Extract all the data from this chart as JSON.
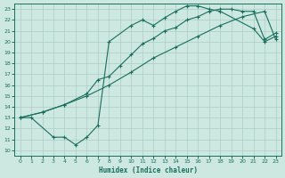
{
  "xlabel": "Humidex (Indice chaleur)",
  "background_color": "#cce8e0",
  "grid_color": "#aaccc4",
  "line_color": "#1a6e5e",
  "xlim": [
    -0.5,
    23.5
  ],
  "ylim": [
    9.5,
    23.5
  ],
  "xticks": [
    0,
    1,
    2,
    3,
    4,
    5,
    6,
    7,
    8,
    9,
    10,
    11,
    12,
    13,
    14,
    15,
    16,
    17,
    18,
    19,
    20,
    21,
    22,
    23
  ],
  "yticks": [
    10,
    11,
    12,
    13,
    14,
    15,
    16,
    17,
    18,
    19,
    20,
    21,
    22,
    23
  ],
  "line1_x": [
    0,
    1,
    3,
    4,
    5,
    6,
    7,
    8,
    10,
    11,
    12,
    13,
    14,
    15,
    16,
    17,
    18,
    21,
    22,
    23
  ],
  "line1_y": [
    13,
    13,
    11.2,
    11.2,
    10.5,
    11.2,
    12.3,
    20.0,
    21.5,
    22.0,
    21.5,
    22.2,
    22.8,
    23.3,
    23.3,
    23.0,
    22.8,
    21.2,
    20.0,
    20.5
  ],
  "line2_x": [
    0,
    2,
    4,
    6,
    7,
    8,
    9,
    10,
    11,
    12,
    13,
    14,
    15,
    16,
    17,
    18,
    19,
    20,
    21,
    22,
    23
  ],
  "line2_y": [
    13,
    13.5,
    14.2,
    15.2,
    16.5,
    16.8,
    17.8,
    18.8,
    19.8,
    20.3,
    21.0,
    21.3,
    22.0,
    22.3,
    22.8,
    23.0,
    23.0,
    22.8,
    22.8,
    20.2,
    20.8
  ],
  "line3_x": [
    0,
    2,
    4,
    6,
    8,
    10,
    12,
    14,
    16,
    18,
    20,
    22,
    23
  ],
  "line3_y": [
    13,
    13.5,
    14.2,
    15.0,
    16.0,
    17.2,
    18.5,
    19.5,
    20.5,
    21.5,
    22.3,
    22.8,
    20.2
  ]
}
